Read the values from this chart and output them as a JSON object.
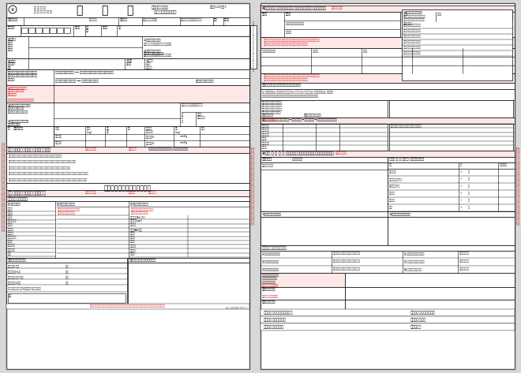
{
  "figsize": [
    6.6,
    4.73
  ],
  "dpi": 100,
  "bg_color": "#d8d8d8",
  "page_bg": "#ffffff",
  "border_color": "#000000",
  "red_color": "#cc0000",
  "light_red_bg": "#fde8e8",
  "med_red_bg": "#f5c0c0"
}
